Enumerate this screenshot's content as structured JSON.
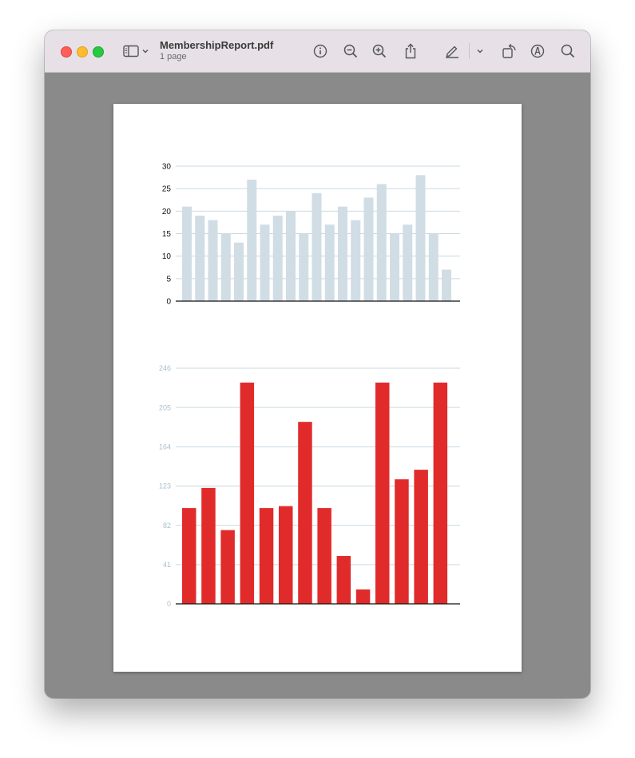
{
  "window": {
    "title": "MembershipReport.pdf",
    "subtitle": "1 page"
  },
  "toolbar": {
    "icons": [
      "sidebar-icon",
      "chevron-down-icon",
      "info-icon",
      "zoom-out-icon",
      "zoom-in-icon",
      "share-icon",
      "markup-pen-icon",
      "chevron-down-icon",
      "rotate-icon",
      "annotate-icon",
      "search-icon"
    ]
  },
  "colors": {
    "chart1_bar": "#d0dde5",
    "chart2_bar": "#e12b2b",
    "gridline": "#c9d9e2",
    "axis": "#111111",
    "chart1_ticks": "#111111",
    "chart2_ticks": "#a9bfcd"
  },
  "chart_data": [
    {
      "type": "bar",
      "values": [
        21,
        19,
        18,
        15,
        13,
        27,
        17,
        19,
        20,
        15,
        24,
        17,
        21,
        18,
        23,
        26,
        15,
        17,
        28,
        15,
        7
      ],
      "ylim": [
        0,
        30
      ],
      "yticks": [
        "0",
        "5",
        "10",
        "15",
        "20",
        "25",
        "30"
      ],
      "grid": true
    },
    {
      "type": "bar",
      "values": [
        100,
        121,
        77,
        231,
        100,
        102,
        190,
        100,
        50,
        15,
        231,
        130,
        140,
        231
      ],
      "ylim": [
        0,
        246
      ],
      "yticks": [
        "0",
        "41",
        "82",
        "123",
        "164",
        "205",
        "246"
      ],
      "grid": true
    }
  ]
}
